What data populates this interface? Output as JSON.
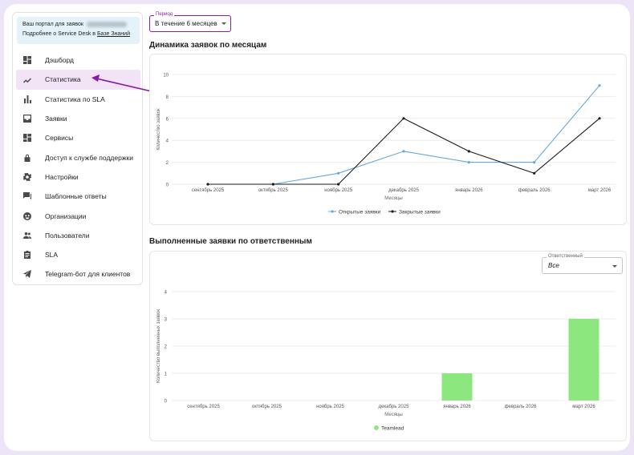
{
  "portal": {
    "line1": "Ваш портал для заявок",
    "line2_prefix": "Подробнее о Service Desk в ",
    "line2_link": "Базе Знаний"
  },
  "menu": [
    {
      "label": "Дэшборд",
      "icon": "dashboard-icon"
    },
    {
      "label": "Статистика",
      "icon": "trending-up-icon",
      "active": true
    },
    {
      "label": "Статистика по SLA",
      "icon": "bar-chart-icon"
    },
    {
      "label": "Заявки",
      "icon": "inbox-icon"
    },
    {
      "label": "Сервисы",
      "icon": "services-icon"
    },
    {
      "label": "Доступ к службе поддержки",
      "icon": "lock-icon"
    },
    {
      "label": "Настройки",
      "icon": "gear-icon"
    },
    {
      "label": "Шаблонные ответы",
      "icon": "chat-icon"
    },
    {
      "label": "Организации",
      "icon": "organization-icon"
    },
    {
      "label": "Пользователи",
      "icon": "users-icon"
    },
    {
      "label": "SLA",
      "icon": "clipboard-icon"
    },
    {
      "label": "Telegram-бот для клиентов",
      "icon": "telegram-icon"
    }
  ],
  "period": {
    "label": "Период",
    "value": "В течение 6 месяцев"
  },
  "responsible": {
    "label": "Ответственный",
    "value": "Все"
  },
  "colors": {
    "accent": "#8c1aa6",
    "open_line": "#64a8e3",
    "closed_line": "#1a1a1a",
    "bar": "#8ce87e"
  },
  "chart_data": [
    {
      "type": "line",
      "title": "Динамика заявок по месяцам",
      "xlabel": "Месяцы",
      "ylabel": "Количество заявок",
      "categories": [
        "сентябрь 2025",
        "октябрь 2025",
        "ноябрь 2025",
        "декабрь 2025",
        "январь 2026",
        "февраль 2026",
        "март 2026"
      ],
      "yticks": [
        0,
        2,
        4,
        6,
        8,
        10
      ],
      "ylim": [
        0,
        10
      ],
      "grid": true,
      "legend": "bottom",
      "series": [
        {
          "name": "Открытые заявки",
          "values": [
            0,
            0,
            1,
            3,
            2,
            2,
            9
          ]
        },
        {
          "name": "Закрытые заявки",
          "values": [
            0,
            0,
            0,
            6,
            3,
            1,
            6
          ]
        }
      ]
    },
    {
      "type": "bar",
      "title": "Выполненные заявки по ответственным",
      "xlabel": "Месяцы",
      "ylabel": "Количество выполненных заявок",
      "categories": [
        "сентябрь 2025",
        "октябрь 2025",
        "ноябрь 2025",
        "декабрь 2025",
        "январь 2026",
        "февраль 2026",
        "март 2026"
      ],
      "yticks": [
        0,
        1,
        2,
        3,
        4
      ],
      "ylim": [
        0,
        4
      ],
      "grid": true,
      "legend": "bottom",
      "series": [
        {
          "name": "Teamlead",
          "values": [
            0,
            0,
            0,
            0,
            1,
            0,
            3
          ]
        }
      ]
    }
  ]
}
